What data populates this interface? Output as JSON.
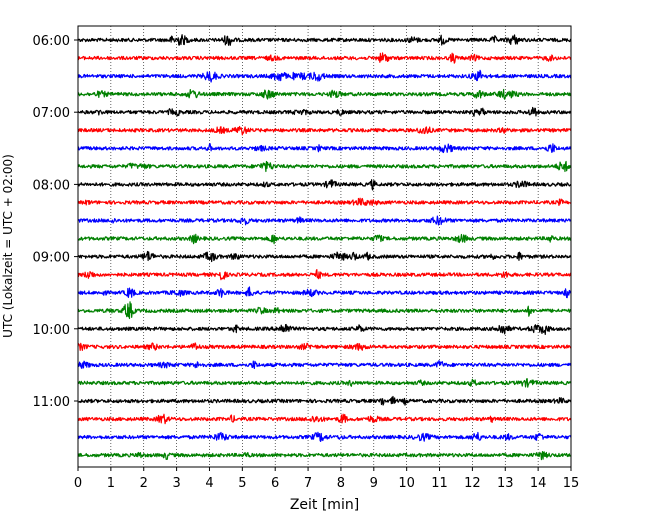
{
  "chart_data": {
    "type": "line",
    "xlabel": "Zeit  [min]",
    "ylabel": "UTC (Lokalzeit = UTC + 02:00)",
    "xlim": [
      0,
      15
    ],
    "x_ticks": [
      "0",
      "1",
      "2",
      "3",
      "4",
      "5",
      "6",
      "7",
      "8",
      "9",
      "10",
      "11",
      "12",
      "13",
      "14",
      "15"
    ],
    "y_ticks": [
      "06:00",
      "07:00",
      "08:00",
      "09:00",
      "10:00",
      "11:00"
    ],
    "grid": "vertical dotted lines at each minute",
    "trace_interval_min": 15,
    "traces": [
      {
        "start": "06:00",
        "color": "#000000"
      },
      {
        "start": "06:15",
        "color": "#ff0000"
      },
      {
        "start": "06:30",
        "color": "#0000ff"
      },
      {
        "start": "06:45",
        "color": "#008000"
      },
      {
        "start": "07:00",
        "color": "#000000"
      },
      {
        "start": "07:15",
        "color": "#ff0000"
      },
      {
        "start": "07:30",
        "color": "#0000ff"
      },
      {
        "start": "07:45",
        "color": "#008000"
      },
      {
        "start": "08:00",
        "color": "#000000"
      },
      {
        "start": "08:15",
        "color": "#ff0000"
      },
      {
        "start": "08:30",
        "color": "#0000ff"
      },
      {
        "start": "08:45",
        "color": "#008000"
      },
      {
        "start": "09:00",
        "color": "#000000"
      },
      {
        "start": "09:15",
        "color": "#ff0000"
      },
      {
        "start": "09:30",
        "color": "#0000ff"
      },
      {
        "start": "09:45",
        "color": "#008000"
      },
      {
        "start": "10:00",
        "color": "#000000"
      },
      {
        "start": "10:15",
        "color": "#ff0000"
      },
      {
        "start": "10:30",
        "color": "#0000ff"
      },
      {
        "start": "10:45",
        "color": "#008000"
      },
      {
        "start": "11:00",
        "color": "#000000"
      },
      {
        "start": "11:15",
        "color": "#ff0000"
      },
      {
        "start": "11:30",
        "color": "#0000ff"
      },
      {
        "start": "11:45",
        "color": "#008000"
      }
    ]
  }
}
